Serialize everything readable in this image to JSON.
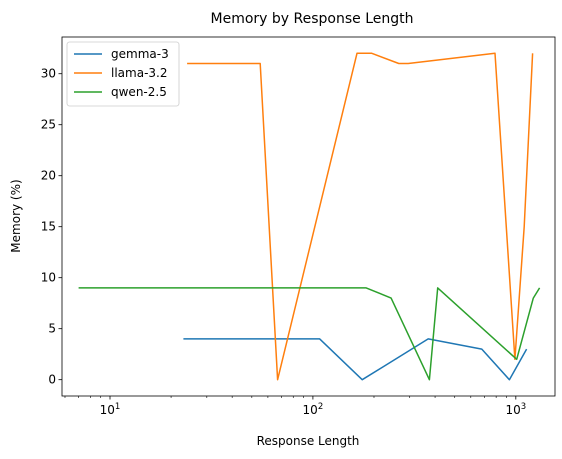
{
  "chart_data": {
    "type": "line",
    "title": "Memory by Response Length",
    "xlabel": "Response Length",
    "ylabel": "Memory (%)",
    "xscale": "log",
    "xlim": [
      5.8,
      1560
    ],
    "ylim": [
      -1.6,
      33.6
    ],
    "yticks": [
      0,
      5,
      10,
      15,
      20,
      25,
      30
    ],
    "xticks_major": [
      {
        "value": 10,
        "base": "10",
        "exp": "1"
      },
      {
        "value": 100,
        "base": "10",
        "exp": "2"
      },
      {
        "value": 1000,
        "base": "10",
        "exp": "3"
      }
    ],
    "grid": false,
    "legend_position": "top-left",
    "series": [
      {
        "name": "gemma-3",
        "color": "#1f77b4",
        "points": [
          [
            23,
            4
          ],
          [
            108,
            4
          ],
          [
            175,
            0
          ],
          [
            370,
            4
          ],
          [
            680,
            3
          ],
          [
            930,
            0
          ],
          [
            1130,
            3
          ]
        ]
      },
      {
        "name": "llama-3.2",
        "color": "#ff7f0e",
        "points": [
          [
            24,
            31
          ],
          [
            55,
            31
          ],
          [
            67,
            0
          ],
          [
            165,
            32
          ],
          [
            195,
            32
          ],
          [
            265,
            31
          ],
          [
            295,
            31
          ],
          [
            790,
            32
          ],
          [
            990,
            2
          ],
          [
            1100,
            15
          ],
          [
            1210,
            32
          ]
        ]
      },
      {
        "name": "qwen-2.5",
        "color": "#2ca02c",
        "points": [
          [
            7,
            9
          ],
          [
            183,
            9
          ],
          [
            243,
            8
          ],
          [
            375,
            0
          ],
          [
            412,
            9
          ],
          [
            1010,
            2
          ],
          [
            1220,
            8
          ],
          [
            1310,
            9
          ]
        ]
      }
    ]
  }
}
